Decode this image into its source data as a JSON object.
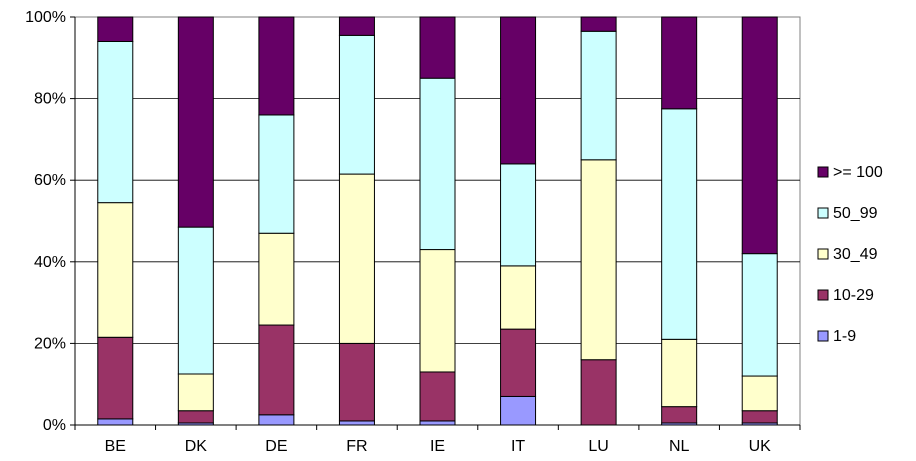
{
  "chart_data": {
    "type": "bar",
    "stacked": true,
    "percent_stacked": true,
    "title": "",
    "xlabel": "",
    "ylabel": "",
    "categories": [
      "BE",
      "DK",
      "DE",
      "FR",
      "IE",
      "IT",
      "LU",
      "NL",
      "UK"
    ],
    "ylim": [
      0,
      100
    ],
    "yticks": [
      "0%",
      "20%",
      "40%",
      "60%",
      "80%",
      "100%"
    ],
    "grid": "horizontal",
    "legend_position": "right",
    "series": [
      {
        "name": "1-9",
        "color": "#9999ff",
        "values": [
          1.5,
          0.5,
          2.5,
          1.0,
          1.0,
          7.0,
          0.0,
          0.5,
          0.5
        ]
      },
      {
        "name": "10-29",
        "color": "#993366",
        "values": [
          20.0,
          3.0,
          22.0,
          19.0,
          12.0,
          16.5,
          16.0,
          4.0,
          3.0
        ]
      },
      {
        "name": "30_49",
        "color": "#ffffcc",
        "values": [
          33.0,
          9.0,
          22.5,
          41.5,
          30.0,
          15.5,
          49.0,
          16.5,
          8.5
        ]
      },
      {
        "name": "50_99",
        "color": "#ccffff",
        "values": [
          39.5,
          36.0,
          29.0,
          34.0,
          42.0,
          25.0,
          31.5,
          56.5,
          30.0
        ]
      },
      {
        "name": ">= 100",
        "color": "#660066",
        "values": [
          6.0,
          51.5,
          24.0,
          4.5,
          15.0,
          36.0,
          3.5,
          22.5,
          58.0
        ]
      }
    ],
    "legend_order": [
      ">= 100",
      "50_99",
      "30_49",
      "10-29",
      "1-9"
    ]
  }
}
